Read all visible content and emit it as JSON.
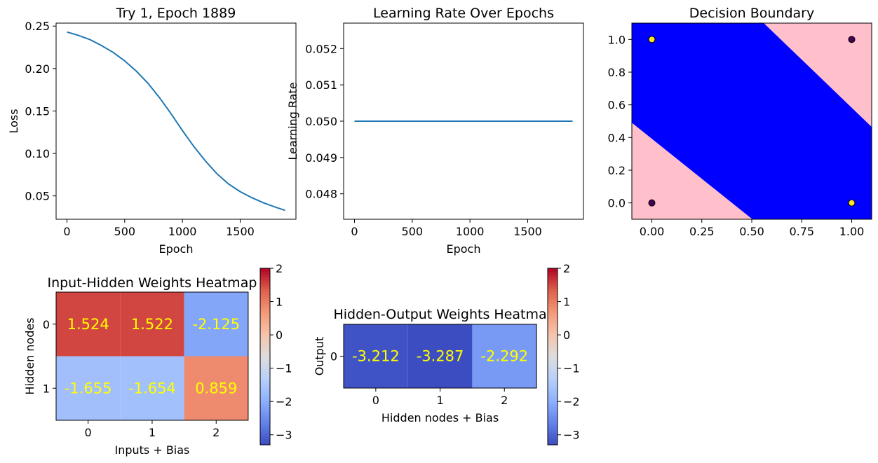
{
  "chart_data": [
    {
      "type": "line",
      "title": "Try 1, Epoch 1889",
      "xlabel": "Epoch",
      "ylabel": "Loss",
      "xlim": [
        -94,
        1983
      ],
      "ylim": [
        0.0225,
        0.2535
      ],
      "xticks": [
        0,
        500,
        1000,
        1500
      ],
      "yticks": [
        0.05,
        0.1,
        0.15,
        0.2,
        0.25
      ],
      "xtick_labels": [
        "0",
        "500",
        "1000",
        "1500"
      ],
      "ytick_labels": [
        "0.05",
        "0.10",
        "0.15",
        "0.20",
        "0.25"
      ],
      "grid": false,
      "color": "#1f77b4",
      "series": [
        {
          "x": [
            0,
            100,
            200,
            300,
            400,
            500,
            600,
            700,
            800,
            900,
            1000,
            1100,
            1200,
            1300,
            1400,
            1500,
            1600,
            1700,
            1800,
            1889
          ],
          "values": [
            0.243,
            0.239,
            0.234,
            0.227,
            0.219,
            0.209,
            0.197,
            0.183,
            0.166,
            0.147,
            0.127,
            0.108,
            0.091,
            0.076,
            0.064,
            0.055,
            0.048,
            0.042,
            0.037,
            0.033
          ]
        }
      ]
    },
    {
      "type": "line",
      "title": "Learning Rate Over Epochs",
      "xlabel": "Epoch",
      "ylabel": "Learning Rate",
      "xlim": [
        -94,
        1983
      ],
      "ylim": [
        0.0473,
        0.0527
      ],
      "xticks": [
        0,
        500,
        1000,
        1500
      ],
      "yticks": [
        0.048,
        0.049,
        0.05,
        0.051,
        0.052
      ],
      "xtick_labels": [
        "0",
        "500",
        "1000",
        "1500"
      ],
      "ytick_labels": [
        "0.048",
        "0.049",
        "0.050",
        "0.051",
        "0.052"
      ],
      "grid": false,
      "color": "#1f77b4",
      "series": [
        {
          "x": [
            0,
            1889
          ],
          "values": [
            0.05,
            0.05
          ]
        }
      ]
    },
    {
      "type": "scatter",
      "title": "Decision Boundary",
      "xlim": [
        -0.1,
        1.1
      ],
      "ylim": [
        -0.1,
        1.1
      ],
      "xticks": [
        0.0,
        0.25,
        0.5,
        0.75,
        1.0
      ],
      "yticks": [
        0.0,
        0.2,
        0.4,
        0.6,
        0.8,
        1.0
      ],
      "xtick_labels": [
        "0.00",
        "0.25",
        "0.50",
        "0.75",
        "1.00"
      ],
      "ytick_labels": [
        "0.0",
        "0.2",
        "0.4",
        "0.6",
        "0.8",
        "1.0"
      ],
      "region_colors": {
        "class0": "#ffc0cb",
        "class1": "#0000ff"
      },
      "boundaries": [
        {
          "x": [
            -0.1,
            0.503
          ],
          "y": [
            0.49,
            -0.1
          ]
        },
        {
          "x": [
            0.56,
            1.1
          ],
          "y": [
            1.1,
            0.465
          ]
        }
      ],
      "points": [
        {
          "x": 0,
          "y": 0,
          "label": 0,
          "color": "#440154"
        },
        {
          "x": 0,
          "y": 1,
          "label": 1,
          "color": "#fde725"
        },
        {
          "x": 1,
          "y": 0,
          "label": 1,
          "color": "#fde725"
        },
        {
          "x": 1,
          "y": 1,
          "label": 0,
          "color": "#440154"
        }
      ]
    },
    {
      "type": "heatmap",
      "title": "Input-Hidden Weights Heatmap",
      "xlabel": "Inputs + Bias",
      "ylabel": "Hidden nodes",
      "xtick_labels": [
        "0",
        "1",
        "2"
      ],
      "ytick_labels": [
        "0",
        "1"
      ],
      "values": [
        [
          1.524,
          1.522,
          -2.125
        ],
        [
          -1.655,
          -1.654,
          0.859
        ]
      ],
      "value_labels": [
        [
          "1.524",
          "1.522",
          "-2.125"
        ],
        [
          "-1.655",
          "-1.654",
          "0.859"
        ]
      ],
      "annotation_color": "#ffff00",
      "colormap": "coolwarm",
      "colorbar": {
        "range": [
          -3.3,
          2.0
        ],
        "ticks": [
          2,
          1,
          0,
          -1,
          -2,
          -3
        ],
        "tick_labels": [
          "2",
          "1",
          "0",
          "−1",
          "−2",
          "−3"
        ]
      }
    },
    {
      "type": "heatmap",
      "title": "Hidden-Output Weights Heatma",
      "xlabel": "Hidden nodes + Bias",
      "ylabel": "Output",
      "xtick_labels": [
        "0",
        "1",
        "2"
      ],
      "ytick_labels": [
        "0"
      ],
      "values": [
        [
          -3.212,
          -3.287,
          -2.292
        ]
      ],
      "value_labels": [
        [
          "-3.212",
          "-3.287",
          "-2.292"
        ]
      ],
      "annotation_color": "#ffff00",
      "colormap": "coolwarm",
      "colorbar": {
        "range": [
          -3.3,
          2.0
        ],
        "ticks": [
          2,
          1,
          0,
          -1,
          -2,
          -3
        ],
        "tick_labels": [
          "2",
          "1",
          "0",
          "−1",
          "−2",
          "−3"
        ]
      }
    }
  ]
}
